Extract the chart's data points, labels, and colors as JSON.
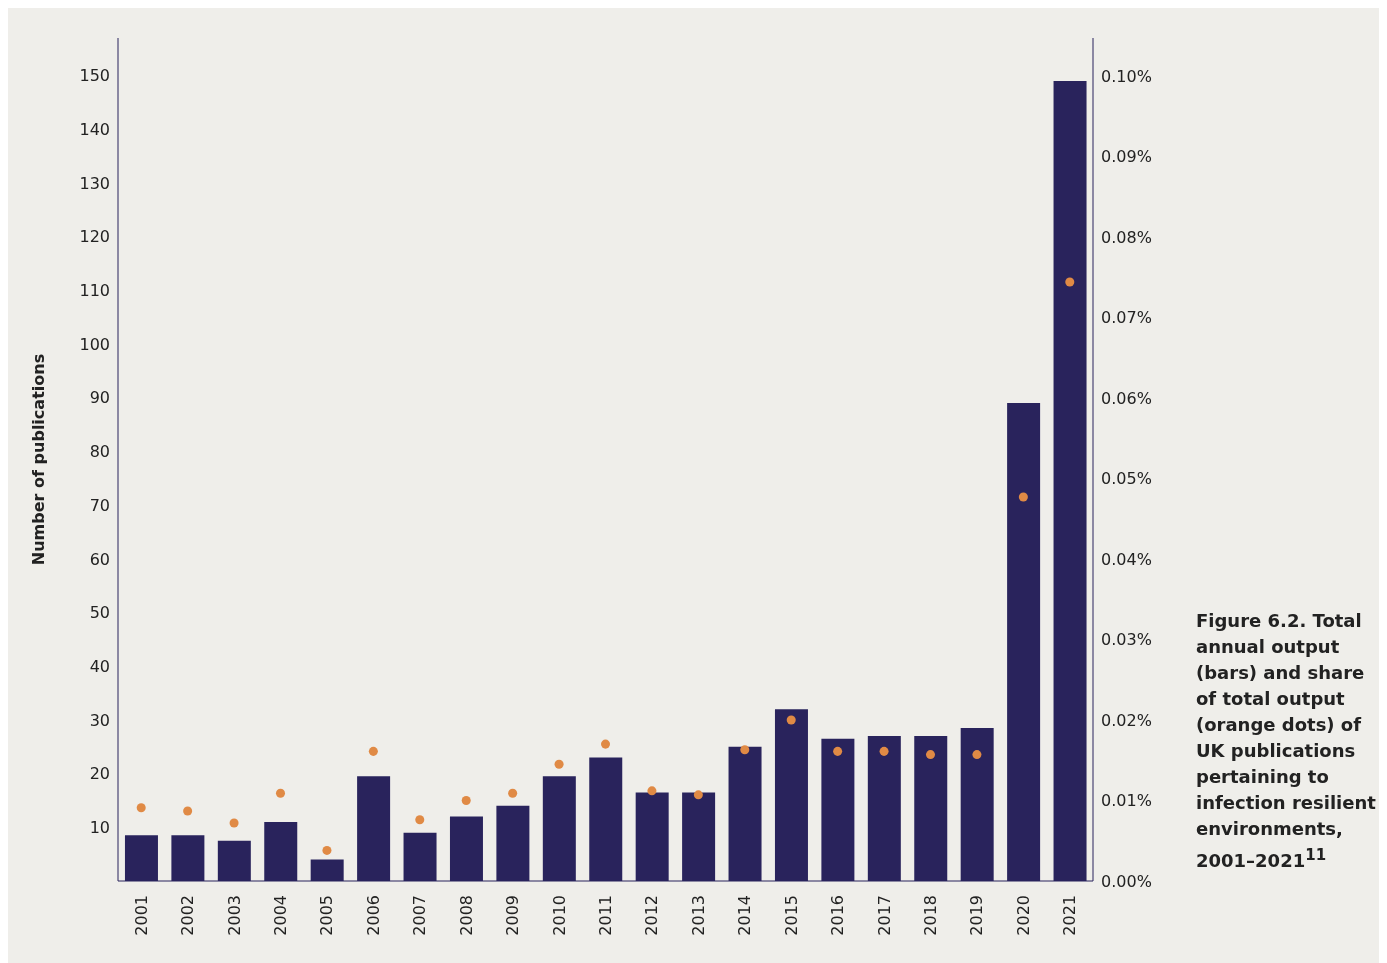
{
  "chart_data": {
    "type": "bar",
    "ylabel": "Number of publications",
    "categories": [
      "2001",
      "2002",
      "2003",
      "2004",
      "2005",
      "2006",
      "2007",
      "2008",
      "2009",
      "2010",
      "2011",
      "2012",
      "2013",
      "2014",
      "2015",
      "2016",
      "2017",
      "2018",
      "2019",
      "2020",
      "2021"
    ],
    "series": [
      {
        "color": "#29235c",
        "values": [
          8.5,
          8.5,
          7.5,
          11,
          4,
          19.5,
          9,
          12,
          14,
          19.5,
          23,
          16.5,
          16.5,
          25,
          32,
          26.5,
          27,
          27,
          28.5,
          89,
          149
        ]
      },
      {
        "type": "scatter",
        "axis": "y2",
        "color": "#e08a45",
        "values": [
          0.0091,
          0.0087,
          0.0072,
          0.0109,
          0.0038,
          0.0161,
          0.0076,
          0.01,
          0.0109,
          0.0145,
          0.017,
          0.0112,
          0.0107,
          0.0163,
          0.02,
          0.0161,
          0.0161,
          0.0157,
          0.0157,
          0.0477,
          0.0744
        ]
      }
    ],
    "ylim": [
      0,
      157
    ],
    "yticks": [
      10,
      20,
      30,
      40,
      50,
      60,
      70,
      80,
      90,
      100,
      110,
      120,
      130,
      140,
      150
    ],
    "y2lim": [
      0,
      0.1047
    ],
    "y2ticks": [
      {
        "value": 0,
        "label": "0.00%"
      },
      {
        "value": 0.01,
        "label": "0.01%"
      },
      {
        "value": 0.02,
        "label": "0.02%"
      },
      {
        "value": 0.03,
        "label": "0.03%"
      },
      {
        "value": 0.04,
        "label": "0.04%"
      },
      {
        "value": 0.05,
        "label": "0.05%"
      },
      {
        "value": 0.06,
        "label": "0.06%"
      },
      {
        "value": 0.07,
        "label": "0.07%"
      },
      {
        "value": 0.08,
        "label": "0.08%"
      },
      {
        "value": 0.09,
        "label": "0.09%"
      },
      {
        "value": 0.1,
        "label": "0.10%"
      }
    ],
    "grid": false,
    "legend": false,
    "marker": "circle",
    "annotations": [
      "Figure 6.2. Total annual output (bars) and share of total output (orange dots) of UK publications pertaining to infection resilient environments, 2001–2021$^{11}$"
    ]
  }
}
